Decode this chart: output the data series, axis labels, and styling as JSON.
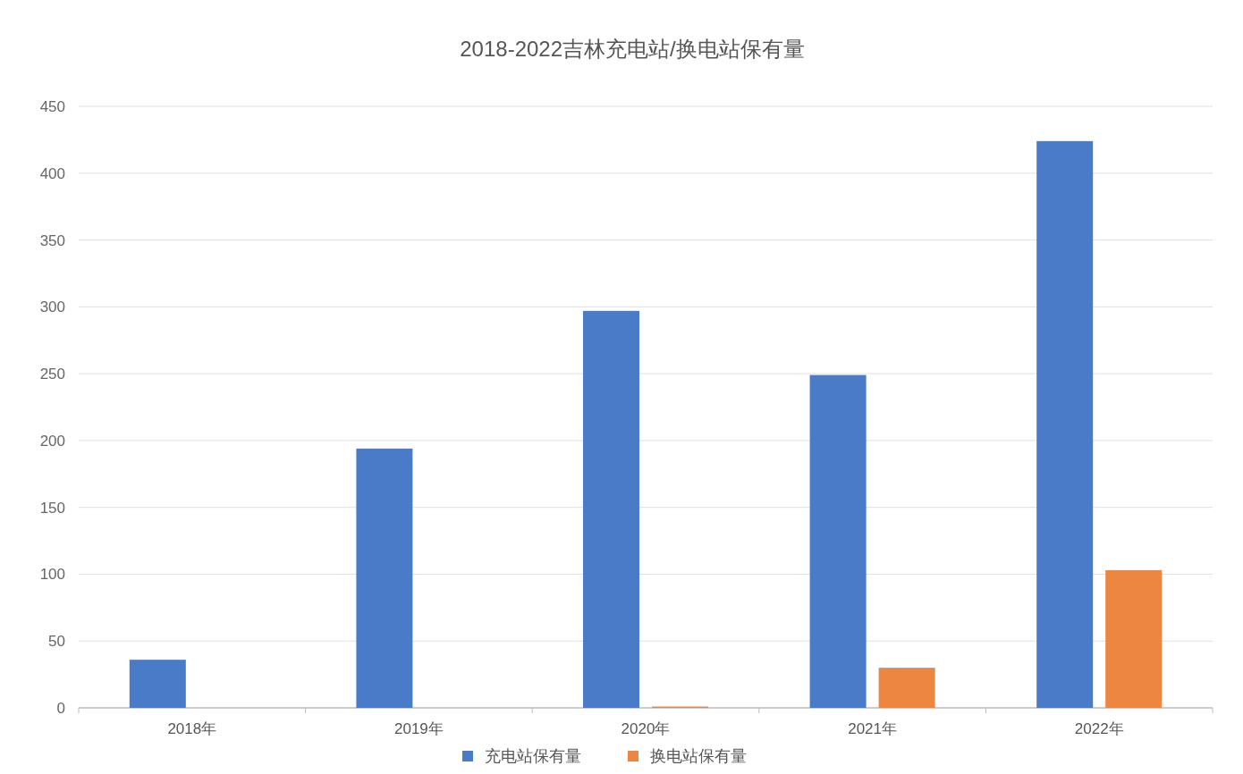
{
  "chart_data": {
    "type": "bar",
    "title": "2018-2022吉林充电站/换电站保有量",
    "categories": [
      "2018年",
      "2019年",
      "2020年",
      "2021年",
      "2022年"
    ],
    "series": [
      {
        "name": "充电站保有量",
        "color": "#4a7bc8",
        "values": [
          36,
          194,
          297,
          249,
          424
        ]
      },
      {
        "name": "换电站保有量",
        "color": "#ed8641",
        "values": [
          0,
          0,
          1,
          30,
          103
        ]
      }
    ],
    "ylim": [
      0,
      450
    ],
    "yticks": [
      0,
      50,
      100,
      150,
      200,
      250,
      300,
      350,
      400,
      450
    ],
    "grid": "y",
    "legend": "bottom"
  }
}
